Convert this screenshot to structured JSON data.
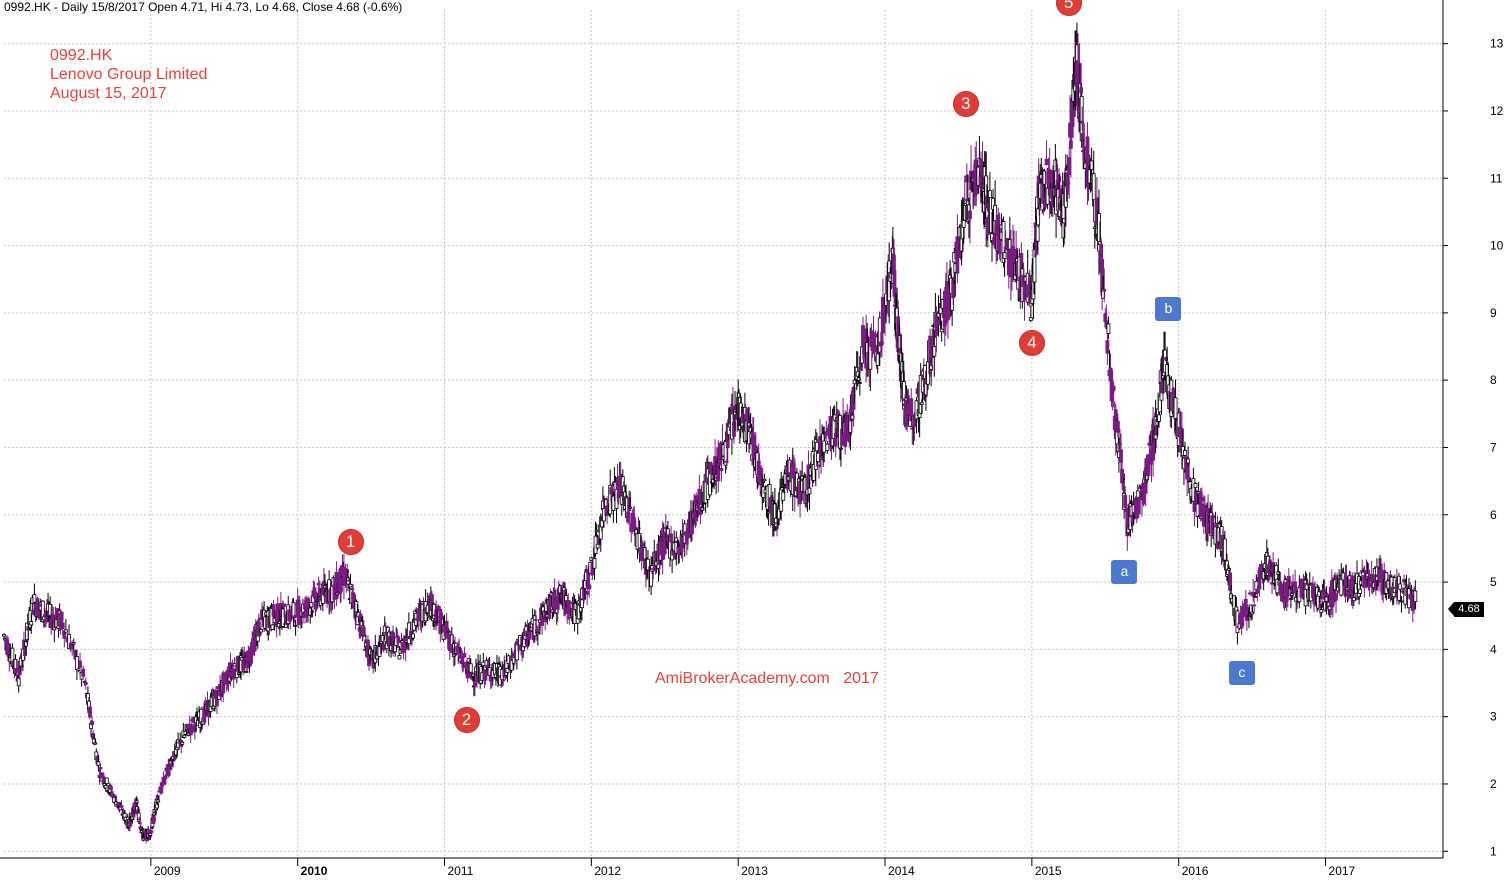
{
  "header": {
    "text": "0992.HK - Daily 15/8/2017 Open 4.71, Hi 4.73, Lo 4.68, Close 4.68 (-0.6%)"
  },
  "title_block": {
    "ticker": "0992.HK",
    "company": "Lenovo Group Limited",
    "date": "August 15, 2017"
  },
  "watermark": "AmiBrokerAcademy.com   2017",
  "last_price": "4.68",
  "colors": {
    "candle_up": "#000000",
    "candle_down": "#7b1a82",
    "grid": "#c8c8c8",
    "annotation_red": "#e8413a",
    "annotation_blue": "#4c79cf"
  },
  "wave_labels": [
    {
      "label": "1",
      "x": 2010.36,
      "y": 5.6
    },
    {
      "label": "2",
      "x": 2011.15,
      "y": 2.95
    },
    {
      "label": "3",
      "x": 2014.55,
      "y": 12.1
    },
    {
      "label": "4",
      "x": 2015.0,
      "y": 8.55
    },
    {
      "label": "5",
      "x": 2015.25,
      "y": 13.6
    }
  ],
  "correction_labels": [
    {
      "label": "a",
      "x": 2015.63,
      "y": 5.15
    },
    {
      "label": "b",
      "x": 2015.93,
      "y": 9.05
    },
    {
      "label": "c",
      "x": 2016.43,
      "y": 3.65
    }
  ],
  "chart_data": {
    "type": "line",
    "series": [
      {
        "x": [
          2008.0,
          2008.1,
          2008.2,
          2008.3,
          2008.4,
          2008.55,
          2008.65,
          2008.75,
          2008.85,
          2008.9,
          2008.95,
          2009.0,
          2009.05,
          2009.15,
          2009.25,
          2009.35,
          2009.45,
          2009.55,
          2009.65,
          2009.75,
          2009.85,
          2009.95,
          2010.05,
          2010.15,
          2010.25,
          2010.32,
          2010.4,
          2010.5,
          2010.6,
          2010.7,
          2010.8,
          2010.9,
          2011.0,
          2011.1,
          2011.2,
          2011.3,
          2011.4,
          2011.5,
          2011.6,
          2011.7,
          2011.8,
          2011.9,
          2012.0,
          2012.1,
          2012.2,
          2012.3,
          2012.4,
          2012.5,
          2012.6,
          2012.7,
          2012.8,
          2012.9,
          2013.0,
          2013.08,
          2013.15,
          2013.25,
          2013.35,
          2013.45,
          2013.55,
          2013.65,
          2013.75,
          2013.85,
          2013.95,
          2014.05,
          2014.1,
          2014.15,
          2014.25,
          2014.35,
          2014.45,
          2014.55,
          2014.65,
          2014.7,
          2014.8,
          2014.9,
          2015.0,
          2015.05,
          2015.15,
          2015.22,
          2015.3,
          2015.35,
          2015.45,
          2015.55,
          2015.65,
          2015.75,
          2015.82,
          2015.9,
          2016.0,
          2016.1,
          2016.2,
          2016.3,
          2016.4,
          2016.5,
          2016.6,
          2016.7,
          2016.8,
          2016.9,
          2017.0,
          2017.1,
          2017.2,
          2017.3,
          2017.4,
          2017.5,
          2017.62
        ],
        "y": [
          4.2,
          3.6,
          4.7,
          4.5,
          4.4,
          3.5,
          2.2,
          1.8,
          1.4,
          1.7,
          1.2,
          1.3,
          1.8,
          2.4,
          2.8,
          3.0,
          3.3,
          3.7,
          3.8,
          4.4,
          4.5,
          4.5,
          4.6,
          4.8,
          4.9,
          5.1,
          4.6,
          3.8,
          4.2,
          4.0,
          4.4,
          4.7,
          4.3,
          3.9,
          3.6,
          3.7,
          3.6,
          4.0,
          4.3,
          4.6,
          4.8,
          4.5,
          5.2,
          6.2,
          6.4,
          5.8,
          5.1,
          5.6,
          5.5,
          6.0,
          6.5,
          6.9,
          7.6,
          7.2,
          6.6,
          6.0,
          6.6,
          6.3,
          7.0,
          7.3,
          7.2,
          8.5,
          8.4,
          9.8,
          8.4,
          7.4,
          7.8,
          8.8,
          9.3,
          10.6,
          11.2,
          10.5,
          10.0,
          9.7,
          9.2,
          10.8,
          11.0,
          10.4,
          12.8,
          11.6,
          10.3,
          7.8,
          5.9,
          6.3,
          7.0,
          8.2,
          7.3,
          6.3,
          5.9,
          5.6,
          4.4,
          4.7,
          5.3,
          4.9,
          4.9,
          4.8,
          4.7,
          5.0,
          4.9,
          5.1,
          5.0,
          4.9,
          4.68
        ]
      }
    ],
    "x_ticks": [
      "2009",
      "2010",
      "2011",
      "2012",
      "2013",
      "2014",
      "2015",
      "2016",
      "2017"
    ],
    "x_tick_values": [
      2009.0,
      2010.0,
      2011.0,
      2012.0,
      2013.0,
      2014.0,
      2015.0,
      2016.0,
      2017.0
    ],
    "y_ticks": [
      1,
      2,
      3,
      4,
      5,
      6,
      7,
      8,
      9,
      10,
      11,
      12,
      13
    ],
    "xlim": [
      2008.0,
      2017.8
    ],
    "ylim": [
      0.9,
      13.5
    ],
    "grid": true,
    "legend": "none"
  }
}
